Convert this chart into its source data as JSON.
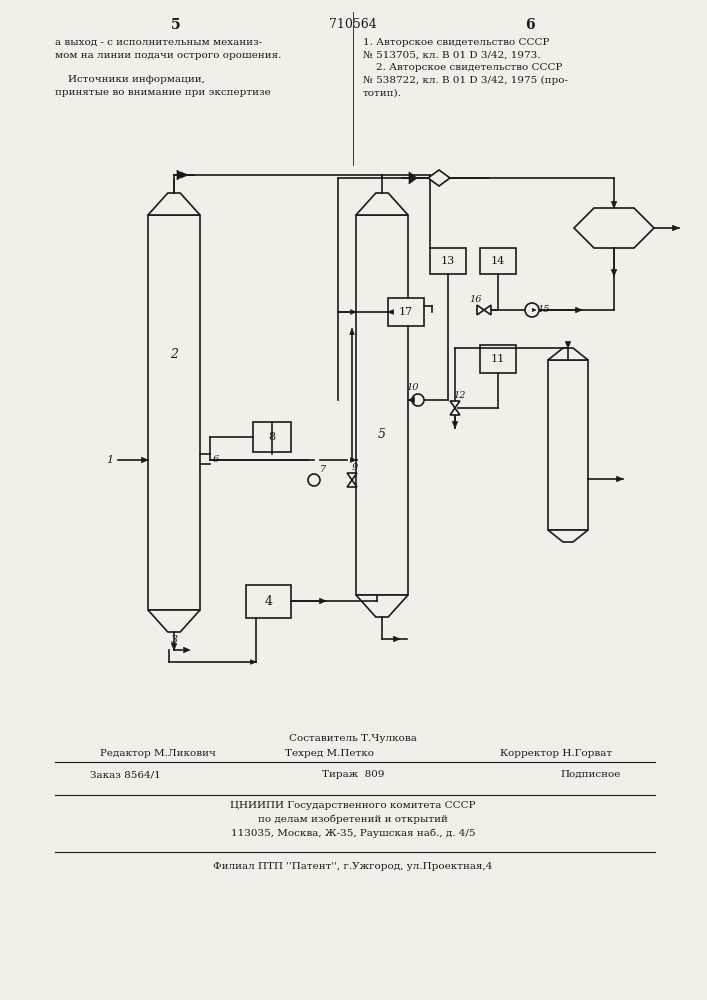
{
  "page_num_left": "5",
  "page_num_center": "710564",
  "page_num_right": "6",
  "text_left": "а выход - с исполнительным механиз-\nмом на линии подачи острого орошения.\n\n    Источники информации,\nпринятые во внимание при экспертизе",
  "text_right": "1. Авторское свидетельство СССР\n№ 513705, кл. B 01 D 3/42, 1973.\n    2. Авторское свидетельство СССР\n№ 538722, кл. B 01 D 3/42, 1975 (про-\nтотип).",
  "footer_ed": "Редактор М.Ликович",
  "footer_sost": "Составитель Т.Чулкова",
  "footer_tech": "Техред М.Петко",
  "footer_corr": "Корректор Н.Горват",
  "footer_order": "Заказ 8564/1",
  "footer_tirazh": "Тираж  809",
  "footer_podp": "Подписное",
  "footer_org1": "ЦНИИПИ Государственного комитета СССР",
  "footer_org2": "по делам изобретений и открытий",
  "footer_org3": "113035, Москва, Ж-35, Раушская наб., д. 4/5",
  "footer_branch": "Филиал ПТП ''Патент'', г.Ужгород, ул.Проектная,4",
  "bg_color": "#f2efe9",
  "line_color": "#1a1a1a"
}
